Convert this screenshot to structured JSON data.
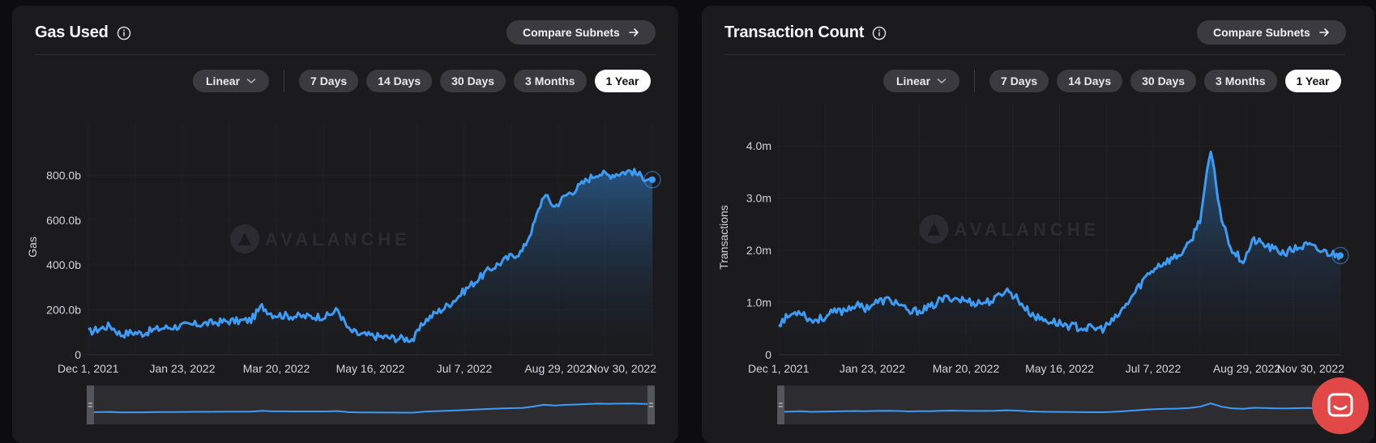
{
  "ranges": {
    "scale_label": "Linear",
    "options": [
      "7 Days",
      "14 Days",
      "30 Days",
      "3 Months",
      "1 Year"
    ],
    "active": "1 Year"
  },
  "compare_label": "Compare Subnets",
  "watermark": "AVALANCHE",
  "colors": {
    "line": "#3d9cf5",
    "panel": "#1b1b1e",
    "pill": "#3a3a3f",
    "active_pill": "#ffffff",
    "chat": "#e24848"
  },
  "chart_data": [
    {
      "type": "area",
      "title": "Gas Used",
      "ylabel": "Gas",
      "xlabel": "",
      "x_tick_labels": [
        "Dec 1, 2021",
        "Jan 23, 2022",
        "Mar 20, 2022",
        "May 16, 2022",
        "Jul 7, 2022",
        "Aug 29, 2022",
        "Nov 30, 2022"
      ],
      "y_tick_values": [
        0,
        200,
        400,
        600,
        800
      ],
      "y_tick_labels": [
        "0",
        "200.0b",
        "400.0b",
        "600.0b",
        "800.0b"
      ],
      "ylim": [
        0,
        960
      ],
      "y_unit": "billion",
      "x_range": [
        "Dec 1, 2021",
        "Nov 30, 2022"
      ],
      "grid": true,
      "series": [
        {
          "values_x_dates": [
            "2021-12-01",
            "2021-12-08",
            "2021-12-15",
            "2021-12-22",
            "2021-12-29",
            "2022-01-05",
            "2022-01-12",
            "2022-01-19",
            "2022-01-26",
            "2022-02-02",
            "2022-02-09",
            "2022-02-16",
            "2022-02-23",
            "2022-03-02",
            "2022-03-09",
            "2022-03-16",
            "2022-03-23",
            "2022-03-30",
            "2022-04-06",
            "2022-04-13",
            "2022-04-20",
            "2022-04-27",
            "2022-05-04",
            "2022-05-11",
            "2022-05-18",
            "2022-05-25",
            "2022-06-01",
            "2022-06-08",
            "2022-06-15",
            "2022-06-22",
            "2022-06-29",
            "2022-07-06",
            "2022-07-13",
            "2022-07-20",
            "2022-07-27",
            "2022-08-03",
            "2022-08-10",
            "2022-08-17",
            "2022-08-24",
            "2022-08-31",
            "2022-09-07",
            "2022-09-14",
            "2022-09-21",
            "2022-09-28",
            "2022-10-05",
            "2022-10-12",
            "2022-10-19",
            "2022-10-26",
            "2022-11-02",
            "2022-11-09",
            "2022-11-16",
            "2022-11-23",
            "2022-11-30"
          ],
          "values": [
            100,
            115,
            130,
            90,
            100,
            95,
            110,
            120,
            125,
            130,
            135,
            140,
            145,
            150,
            150,
            155,
            215,
            180,
            175,
            172,
            170,
            170,
            172,
            200,
            110,
            90,
            85,
            80,
            75,
            72,
            70,
            150,
            185,
            215,
            255,
            300,
            340,
            380,
            410,
            440,
            460,
            570,
            715,
            660,
            710,
            740,
            780,
            810,
            800,
            810,
            820,
            795,
            780
          ]
        }
      ]
    },
    {
      "type": "area",
      "title": "Transaction Count",
      "ylabel": "Transactions",
      "xlabel": "",
      "x_tick_labels": [
        "Dec 1, 2021",
        "Jan 23, 2022",
        "Mar 20, 2022",
        "May 16, 2022",
        "Jul 7, 2022",
        "Aug 29, 2022",
        "Nov 30, 2022"
      ],
      "y_tick_values": [
        0,
        1,
        2,
        3,
        4
      ],
      "y_tick_labels": [
        "0",
        "1.0m",
        "2.0m",
        "3.0m",
        "4.0m"
      ],
      "ylim": [
        0,
        4.5
      ],
      "y_unit": "million",
      "x_range": [
        "Dec 1, 2021",
        "Nov 30, 2022"
      ],
      "grid": true,
      "series": [
        {
          "values_x_dates": [
            "2021-12-01",
            "2021-12-08",
            "2021-12-15",
            "2021-12-22",
            "2021-12-29",
            "2022-01-05",
            "2022-01-12",
            "2022-01-19",
            "2022-01-26",
            "2022-02-02",
            "2022-02-09",
            "2022-02-16",
            "2022-02-23",
            "2022-03-02",
            "2022-03-09",
            "2022-03-16",
            "2022-03-23",
            "2022-03-30",
            "2022-04-06",
            "2022-04-13",
            "2022-04-20",
            "2022-04-27",
            "2022-05-04",
            "2022-05-11",
            "2022-05-18",
            "2022-05-25",
            "2022-06-01",
            "2022-06-08",
            "2022-06-15",
            "2022-06-22",
            "2022-06-29",
            "2022-07-06",
            "2022-07-13",
            "2022-07-20",
            "2022-07-27",
            "2022-08-03",
            "2022-08-10",
            "2022-08-17",
            "2022-08-24",
            "2022-08-31",
            "2022-09-07",
            "2022-09-14",
            "2022-09-21",
            "2022-09-28",
            "2022-10-05",
            "2022-10-12",
            "2022-10-19",
            "2022-10-26",
            "2022-11-02",
            "2022-11-09",
            "2022-11-16",
            "2022-11-23",
            "2022-11-30"
          ],
          "values": [
            0.6,
            0.75,
            0.85,
            0.65,
            0.7,
            0.8,
            0.85,
            0.95,
            0.9,
            1.0,
            1.05,
            1.0,
            0.8,
            0.85,
            0.9,
            1.05,
            1.1,
            1.05,
            1.0,
            1.0,
            1.05,
            1.25,
            1.1,
            0.85,
            0.7,
            0.65,
            0.6,
            0.55,
            0.52,
            0.5,
            0.5,
            0.65,
            0.9,
            1.2,
            1.5,
            1.7,
            1.8,
            1.9,
            2.1,
            2.6,
            3.9,
            2.6,
            2.0,
            1.8,
            2.2,
            2.1,
            2.0,
            1.95,
            2.05,
            2.1,
            2.0,
            1.95,
            1.9
          ]
        }
      ]
    }
  ]
}
